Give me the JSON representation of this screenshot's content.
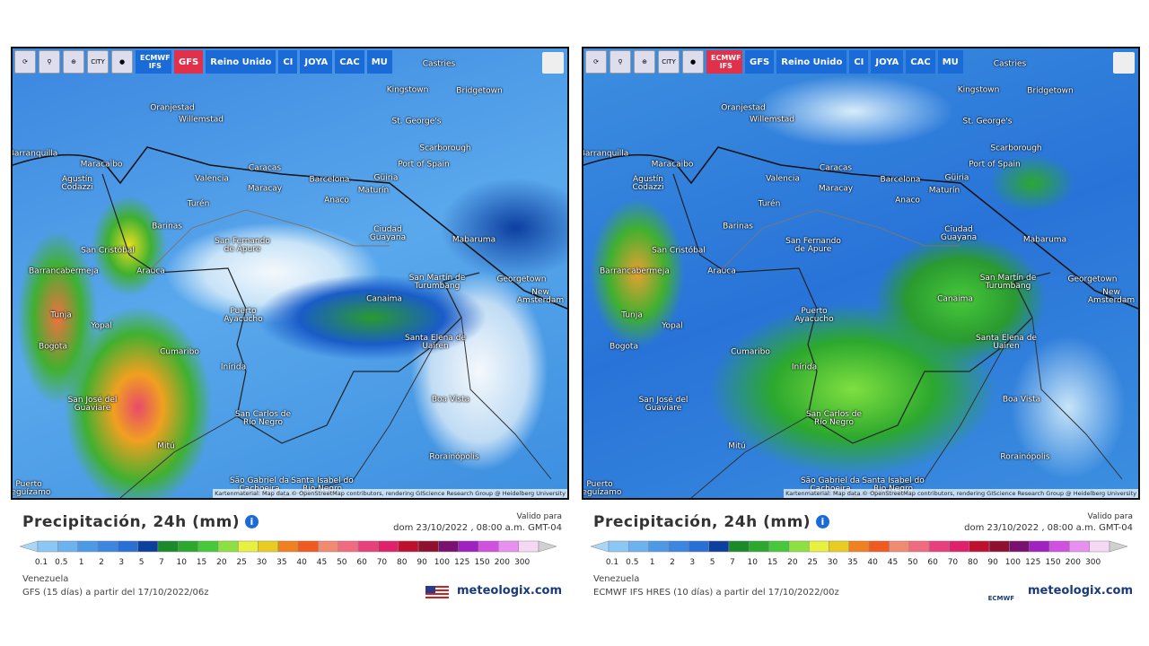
{
  "panels": [
    {
      "toolbar": {
        "buttons": [
          "ECMWF IFS",
          "GFS",
          "Reino Unido",
          "CI",
          "JOYA",
          "CAC",
          "MU"
        ],
        "active": 1,
        "city_button": "CITY"
      },
      "cities": [
        "Castries",
        "Kingstown",
        "Bridgetown",
        "Oranjestad",
        "Willemstad",
        "St. George's",
        "Scarborough",
        "Barranquilla",
        "Port of Spain",
        "Maracaibo",
        "Caracas",
        "Valencia",
        "Barcelona",
        "Güiria",
        "Maracay",
        "Maturín",
        "Agustín Codazzi",
        "Anaco",
        "Turén",
        "Barinas",
        "Ciudad Guayana",
        "Mabaruma",
        "San Fernando de Apure",
        "San Cristóbal",
        "Barrancabermeja",
        "Arauca",
        "San Martín de Turumbang",
        "Georgetown",
        "New Amsterdam",
        "Canaima",
        "Tunja",
        "Yopal",
        "Puerto Ayacucho",
        "Bogota",
        "Santa Elena de Uairen",
        "Cumaribo",
        "Inírida",
        "Boa Vista",
        "San José del Guaviare",
        "San Carlos de Río Negro",
        "Mitú",
        "Rorainópolis",
        "São Gabriel da Cachoeira",
        "Santa Isabel do Rio Negro",
        "Puerto Leguízamo"
      ],
      "attribution": "Kartenmaterial: Map data © OpenStreetMap contributors, rendering GIScience Research Group @ Heidelberg University",
      "title": "Precipitación, 24h (mm)",
      "valid_label": "Valido para",
      "valid_date": "dom 23/10/2022 , 08:00 a.m. GMT-04",
      "legend": [
        0.1,
        0.5,
        1,
        2,
        3,
        5,
        7,
        10,
        15,
        20,
        25,
        30,
        35,
        40,
        45,
        50,
        60,
        70,
        80,
        90,
        100,
        125,
        150,
        200,
        300
      ],
      "region": "Venezuela",
      "model": "GFS (15 días) a partir del 17/10/2022/06z",
      "brand": "meteologix.com"
    },
    {
      "toolbar": {
        "buttons": [
          "ECMWF IFS",
          "GFS",
          "Reino Unido",
          "CI",
          "JOYA",
          "CAC",
          "MU"
        ],
        "active": 0,
        "city_button": "CITY"
      },
      "cities": [
        "Castries",
        "Kingstown",
        "Bridgetown",
        "Oranjestad",
        "Willemstad",
        "St. George's",
        "Scarborough",
        "Barranquilla",
        "Port of Spain",
        "Maracaibo",
        "Caracas",
        "Valencia",
        "Barcelona",
        "Güiria",
        "Maracay",
        "Maturín",
        "Agustín Codazzi",
        "Anaco",
        "Turén",
        "Barinas",
        "Ciudad Guayana",
        "Mabaruma",
        "San Fernando de Apure",
        "San Cristóbal",
        "Barrancabermeja",
        "Arauca",
        "San Martín de Turumbang",
        "Georgetown",
        "New Amsterdam",
        "Canaima",
        "Tunja",
        "Yopal",
        "Puerto Ayacucho",
        "Bogota",
        "Santa Elena de Uairen",
        "Cumaribo",
        "Inírida",
        "Boa Vista",
        "San José del Guaviare",
        "San Carlos de Río Negro",
        "Mitú",
        "Rorainópolis",
        "São Gabriel da Cachoeira",
        "Santa Isabel do Rio Negro",
        "Puerto Leguízamo"
      ],
      "attribution": "Kartenmaterial: Map data © OpenStreetMap contributors, rendering GIScience Research Group @ Heidelberg University",
      "title": "Precipitación, 24h (mm)",
      "valid_label": "Valido para",
      "valid_date": "dom 23/10/2022 , 08:00 a.m. GMT-04",
      "legend": [
        0.1,
        0.5,
        1,
        2,
        3,
        5,
        7,
        10,
        15,
        20,
        25,
        30,
        35,
        40,
        45,
        50,
        60,
        70,
        80,
        90,
        100,
        125,
        150,
        200,
        300
      ],
      "region": "Venezuela",
      "model": "ECMWF IFS HRES (10 días) a partir del 17/10/2022/00z",
      "logo": "ECMWF",
      "brand": "meteologix.com"
    }
  ]
}
